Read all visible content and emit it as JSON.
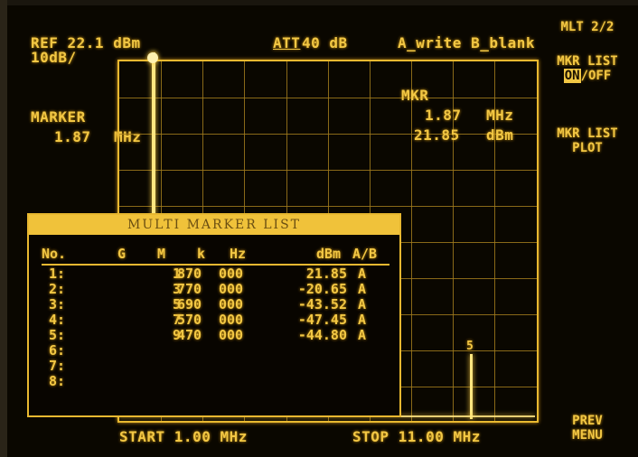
{
  "header": {
    "ref_level": "REF 22.1 dBm",
    "scale": "10dB/",
    "attenuation_label": "ATT",
    "attenuation_value": "40 dB",
    "trace_modes": "A_write B_blank"
  },
  "marker_readout": {
    "left_label": "MARKER",
    "left_freq_value": "1.87",
    "left_freq_unit": "MHz",
    "mkr_label": "MKR",
    "freq_value": "1.87",
    "freq_unit": "MHz",
    "level_value": "21.85",
    "level_unit": "dBm"
  },
  "softkeys": {
    "page": "MLT 2/2",
    "mkr_list_line1": "MKR LIST",
    "mkr_list_on": "ON",
    "mkr_list_off": "/OFF",
    "mkr_list_plot_line1": "MKR LIST",
    "mkr_list_plot_line2": "PLOT",
    "prev_line1": "PREV",
    "prev_line2": "MENU"
  },
  "footer": {
    "start": "START 1.00 MHz",
    "stop": "STOP 11.00 MHz"
  },
  "marker_list": {
    "title": "MULTI MARKER LIST",
    "columns": [
      "No.",
      "G",
      "M",
      "k",
      "Hz",
      "dBm",
      "A/B"
    ],
    "rows": [
      {
        "no": "1:",
        "m": "1",
        "k": "870",
        "hz": "000",
        "dbm": "21.85",
        "ab": "A"
      },
      {
        "no": "2:",
        "m": "3",
        "k": "770",
        "hz": "000",
        "dbm": "-20.65",
        "ab": "A"
      },
      {
        "no": "3:",
        "m": "5",
        "k": "690",
        "hz": "000",
        "dbm": "-43.52",
        "ab": "A"
      },
      {
        "no": "4:",
        "m": "7",
        "k": "570",
        "hz": "000",
        "dbm": "-47.45",
        "ab": "A"
      },
      {
        "no": "5:",
        "m": "9",
        "k": "470",
        "hz": "000",
        "dbm": "-44.80",
        "ab": "A"
      },
      {
        "no": "6:",
        "m": "",
        "k": "",
        "hz": "",
        "dbm": "",
        "ab": ""
      },
      {
        "no": "7:",
        "m": "",
        "k": "",
        "hz": "",
        "dbm": "",
        "ab": ""
      },
      {
        "no": "8:",
        "m": "",
        "k": "",
        "hz": "",
        "dbm": "",
        "ab": ""
      }
    ]
  },
  "grid_marker_label": "5"
}
